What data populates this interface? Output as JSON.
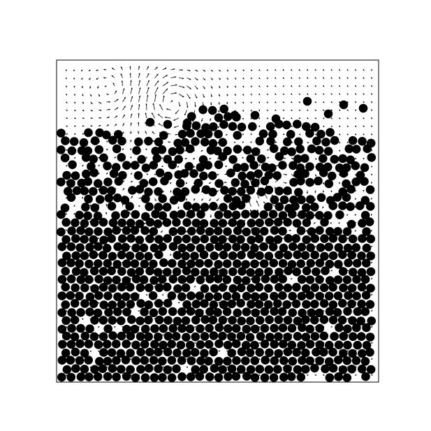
{
  "figure": {
    "description_free": true,
    "colors": {
      "background": "#ffffff",
      "frame": "#000000",
      "particle": "#000000",
      "vector": "#000000"
    },
    "elements": {
      "frame": "simulation-box",
      "particles": "granular-particles",
      "vectors": "velocity-vector-field"
    }
  }
}
